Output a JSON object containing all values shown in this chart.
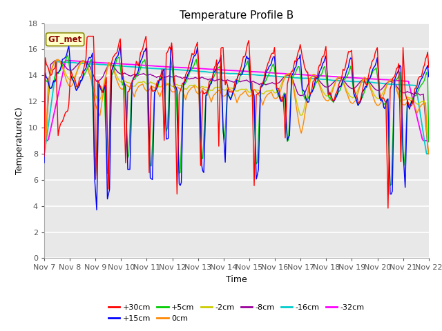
{
  "title": "Temperature Profile B",
  "xlabel": "Time",
  "ylabel": "Temperature(C)",
  "annotation": "GT_met",
  "ylim": [
    0,
    18
  ],
  "xlim": [
    0,
    15
  ],
  "x_tick_labels": [
    "Nov 7",
    "Nov 8",
    "Nov 9",
    "Nov 10",
    "Nov 11",
    "Nov 12",
    "Nov 13",
    "Nov 14",
    "Nov 15",
    "Nov 16",
    "Nov 17",
    "Nov 18",
    "Nov 19",
    "Nov 20",
    "Nov 21",
    "Nov 22"
  ],
  "series_colors": {
    "+30cm": "#FF0000",
    "+15cm": "#0000FF",
    "+5cm": "#00CC00",
    "0cm": "#FF8800",
    "-2cm": "#CCCC00",
    "-8cm": "#990099",
    "-16cm": "#00CCCC",
    "-32cm": "#FF00FF"
  },
  "background_color": "#FFFFFF",
  "plot_bg_color": "#E8E8E8",
  "grid_color": "#FFFFFF",
  "title_fontsize": 11,
  "label_fontsize": 9,
  "tick_fontsize": 8
}
